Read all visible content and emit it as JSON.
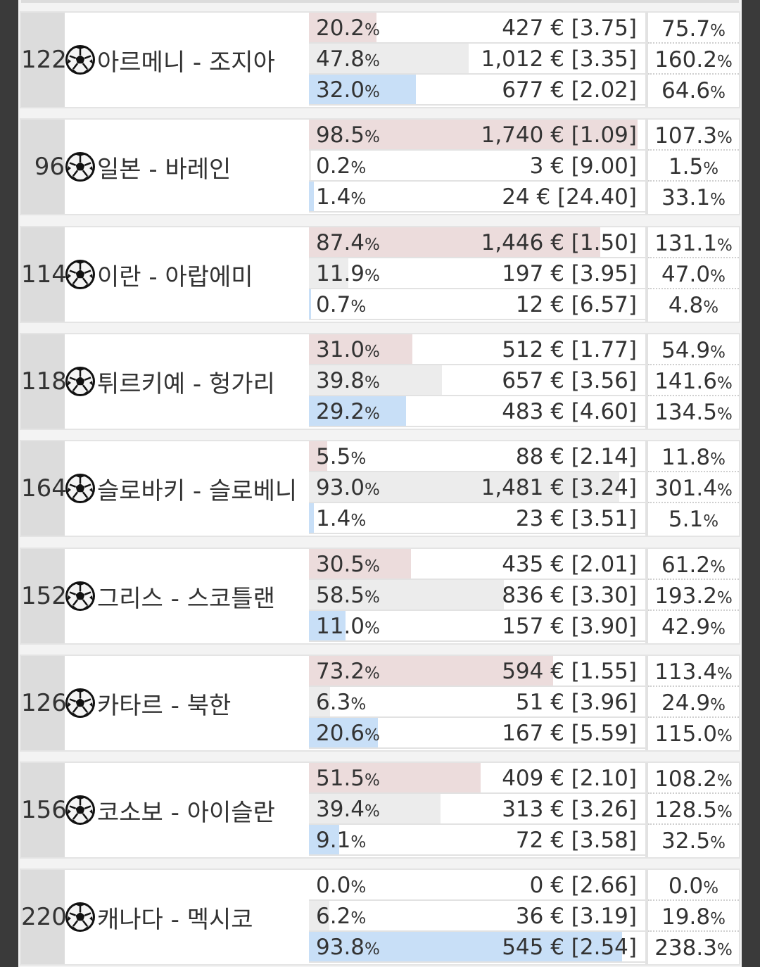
{
  "colors": {
    "home_bar": "#ecdcdc",
    "draw_bar": "#ececec",
    "away_bar": "#c8dff7",
    "id_cell": "#dcdcdc"
  },
  "icon": "soccer-ball-icon",
  "matches": [
    {
      "id": "122",
      "teams": "아르메니 - 조지아",
      "options": [
        {
          "pct": "20.2",
          "amount": "427 € [3.75]",
          "ret": "75.7",
          "fill": 0.202
        },
        {
          "pct": "47.8",
          "amount": "1,012 € [3.35]",
          "ret": "160.2",
          "fill": 0.478
        },
        {
          "pct": "32.0",
          "amount": "677 € [2.02]",
          "ret": "64.6",
          "fill": 0.32
        }
      ]
    },
    {
      "id": "96",
      "teams": "일본 - 바레인",
      "options": [
        {
          "pct": "98.5",
          "amount": "1,740 € [1.09]",
          "ret": "107.3",
          "fill": 0.985
        },
        {
          "pct": "0.2",
          "amount": "3 € [9.00]",
          "ret": "1.5",
          "fill": 0.002
        },
        {
          "pct": "1.4",
          "amount": "24 € [24.40]",
          "ret": "33.1",
          "fill": 0.014
        }
      ]
    },
    {
      "id": "114",
      "teams": "이란 - 아랍에미",
      "options": [
        {
          "pct": "87.4",
          "amount": "1,446 € [1.50]",
          "ret": "131.1",
          "fill": 0.874
        },
        {
          "pct": "11.9",
          "amount": "197 € [3.95]",
          "ret": "47.0",
          "fill": 0.119
        },
        {
          "pct": "0.7",
          "amount": "12 € [6.57]",
          "ret": "4.8",
          "fill": 0.007
        }
      ]
    },
    {
      "id": "118",
      "teams": "튀르키예 - 헝가리",
      "options": [
        {
          "pct": "31.0",
          "amount": "512 € [1.77]",
          "ret": "54.9",
          "fill": 0.31
        },
        {
          "pct": "39.8",
          "amount": "657 € [3.56]",
          "ret": "141.6",
          "fill": 0.398
        },
        {
          "pct": "29.2",
          "amount": "483 € [4.60]",
          "ret": "134.5",
          "fill": 0.292
        }
      ]
    },
    {
      "id": "164",
      "teams": "슬로바키 - 슬로베니",
      "options": [
        {
          "pct": "5.5",
          "amount": "88 € [2.14]",
          "ret": "11.8",
          "fill": 0.055
        },
        {
          "pct": "93.0",
          "amount": "1,481 € [3.24]",
          "ret": "301.4",
          "fill": 0.93
        },
        {
          "pct": "1.4",
          "amount": "23 € [3.51]",
          "ret": "5.1",
          "fill": 0.014
        }
      ]
    },
    {
      "id": "152",
      "teams": "그리스 - 스코틀랜",
      "options": [
        {
          "pct": "30.5",
          "amount": "435 € [2.01]",
          "ret": "61.2",
          "fill": 0.305
        },
        {
          "pct": "58.5",
          "amount": "836 € [3.30]",
          "ret": "193.2",
          "fill": 0.585
        },
        {
          "pct": "11.0",
          "amount": "157 € [3.90]",
          "ret": "42.9",
          "fill": 0.11
        }
      ]
    },
    {
      "id": "126",
      "teams": "카타르 - 북한",
      "options": [
        {
          "pct": "73.2",
          "amount": "594 € [1.55]",
          "ret": "113.4",
          "fill": 0.732
        },
        {
          "pct": "6.3",
          "amount": "51 € [3.96]",
          "ret": "24.9",
          "fill": 0.063
        },
        {
          "pct": "20.6",
          "amount": "167 € [5.59]",
          "ret": "115.0",
          "fill": 0.206
        }
      ]
    },
    {
      "id": "156",
      "teams": "코소보 - 아이슬란",
      "options": [
        {
          "pct": "51.5",
          "amount": "409 € [2.10]",
          "ret": "108.2",
          "fill": 0.515
        },
        {
          "pct": "39.4",
          "amount": "313 € [3.26]",
          "ret": "128.5",
          "fill": 0.394
        },
        {
          "pct": "9.1",
          "amount": "72 € [3.58]",
          "ret": "32.5",
          "fill": 0.091
        }
      ]
    },
    {
      "id": "220",
      "teams": "캐나다 - 멕시코",
      "options": [
        {
          "pct": "0.0",
          "amount": "0 € [2.66]",
          "ret": "0.0",
          "fill": 0.0
        },
        {
          "pct": "6.2",
          "amount": "36 € [3.19]",
          "ret": "19.8",
          "fill": 0.062
        },
        {
          "pct": "93.8",
          "amount": "545 € [2.54]",
          "ret": "238.3",
          "fill": 0.938
        }
      ]
    }
  ]
}
